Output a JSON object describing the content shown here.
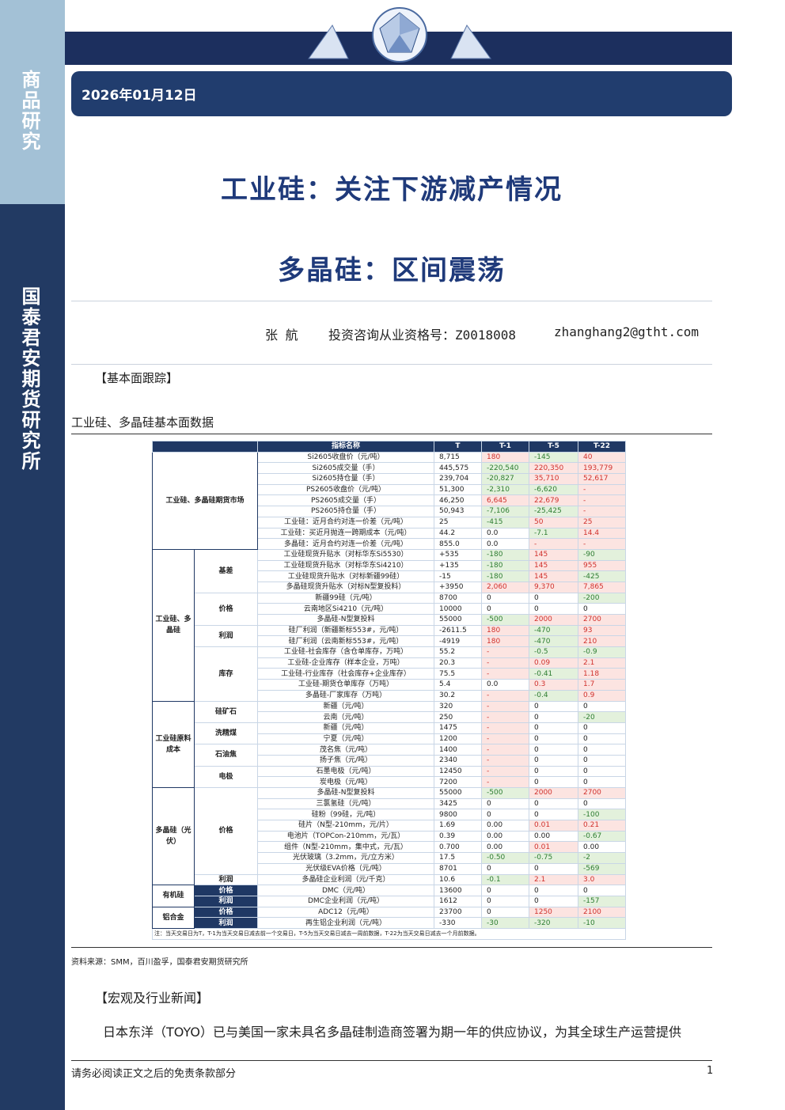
{
  "sidebar": {
    "top": "商品研究",
    "bottom": "国泰君安期货研究所"
  },
  "header": {
    "date": "2026年01月12日"
  },
  "titles": [
    "工业硅：关注下游减产情况",
    "多晶硅：区间震荡"
  ],
  "author": {
    "name": "张 航",
    "license": "投资咨询从业资格号：Z0018008",
    "email": "zhanghang2@gtht.com"
  },
  "section1": "【基本面跟踪】",
  "table_title": "工业硅、多晶硅基本面数据",
  "table": {
    "header": [
      "指标名称",
      "T",
      "T-1",
      "T-5",
      "T-22"
    ],
    "groups": [
      {
        "label": "工业硅、多晶硅期货市场",
        "rows": [
          [
            "Si2605收盘价（元/吨）",
            "8,715",
            "180",
            "-145",
            "40"
          ],
          [
            "Si2605成交量（手）",
            "445,575",
            "-220,540",
            "220,350",
            "193,779"
          ],
          [
            "Si2605持仓量（手）",
            "239,704",
            "-20,827",
            "35,710",
            "52,617"
          ],
          [
            "PS2605收盘价（元/吨）",
            "51,300",
            "-2,310",
            "-6,620",
            "-"
          ],
          [
            "PS2605成交量（手）",
            "46,250",
            "6,645",
            "22,679",
            "-"
          ],
          [
            "PS2605持仓量（手）",
            "50,943",
            "-7,106",
            "-25,425",
            "-"
          ],
          [
            "工业硅：近月合约对连一价差（元/吨）",
            "25",
            "-415",
            "50",
            "25"
          ],
          [
            "工业硅：买近月抛连一跨期成本（元/吨）",
            "44.2",
            "0.0",
            "-7.1",
            "14.4"
          ],
          [
            "多晶硅：近月合约对连一价差（元/吨）",
            "855.0",
            "0.0",
            "-",
            "-"
          ]
        ]
      },
      {
        "label": "工业硅、多晶硅",
        "subgroups": [
          {
            "label": "基差",
            "rows": [
              [
                "工业硅现货升贴水（对标华东Si5530）",
                "+535",
                "-180",
                "145",
                "-90"
              ],
              [
                "工业硅现货升贴水（对标华东Si4210）",
                "+135",
                "-180",
                "145",
                "955"
              ],
              [
                "工业硅现货升贴水（对标新疆99硅）",
                "-15",
                "-180",
                "145",
                "-425"
              ],
              [
                "多晶硅现货升贴水（对标N型复投料）",
                "+3950",
                "2,060",
                "9,370",
                "7,865"
              ]
            ]
          },
          {
            "label": "价格",
            "rows": [
              [
                "新疆99硅（元/吨）",
                "8700",
                "0",
                "0",
                "-200"
              ],
              [
                "云南地区Si4210（元/吨）",
                "10000",
                "0",
                "0",
                "0"
              ],
              [
                "多晶硅-N型复投料",
                "55000",
                "-500",
                "2000",
                "2700"
              ]
            ]
          },
          {
            "label": "利润",
            "rows": [
              [
                "硅厂利润（新疆新标553#，元/吨）",
                "-2611.5",
                "180",
                "-470",
                "93"
              ],
              [
                "硅厂利润（云南新标553#，元/吨）",
                "-4919",
                "180",
                "-470",
                "210"
              ]
            ]
          },
          {
            "label": "库存",
            "rows": [
              [
                "工业硅-社会库存（含仓单库存，万吨）",
                "55.2",
                "-",
                "-0.5",
                "-0.9"
              ],
              [
                "工业硅-企业库存（样本企业，万吨）",
                "20.3",
                "-",
                "0.09",
                "2.1"
              ],
              [
                "工业硅-行业库存（社会库存+企业库存）",
                "75.5",
                "-",
                "-0.41",
                "1.18"
              ],
              [
                "工业硅-期货仓单库存（万吨）",
                "5.4",
                "0.0",
                "0.3",
                "1.7"
              ],
              [
                "多晶硅-厂家库存（万吨）",
                "30.2",
                "-",
                "-0.4",
                "0.9"
              ]
            ]
          }
        ]
      },
      {
        "label": "工业硅原料成本",
        "subgroups": [
          {
            "label": "硅矿石",
            "rows": [
              [
                "新疆（元/吨）",
                "320",
                "-",
                "0",
                "0"
              ],
              [
                "云南（元/吨）",
                "250",
                "-",
                "0",
                "-20"
              ]
            ]
          },
          {
            "label": "洗精煤",
            "rows": [
              [
                "新疆（元/吨）",
                "1475",
                "-",
                "0",
                "0"
              ],
              [
                "宁夏（元/吨）",
                "1200",
                "-",
                "0",
                "0"
              ]
            ]
          },
          {
            "label": "石油焦",
            "rows": [
              [
                "茂名焦（元/吨）",
                "1400",
                "-",
                "0",
                "0"
              ],
              [
                "扬子焦（元/吨）",
                "2340",
                "-",
                "0",
                "0"
              ]
            ]
          },
          {
            "label": "电极",
            "rows": [
              [
                "石墨电极（元/吨）",
                "12450",
                "-",
                "0",
                "0"
              ],
              [
                "炭电极（元/吨）",
                "7200",
                "-",
                "0",
                "0"
              ]
            ]
          }
        ]
      },
      {
        "label": "多晶硅（光伏）",
        "subgroups": [
          {
            "label": "价格",
            "rows": [
              [
                "多晶硅-N型复投料",
                "55000",
                "-500",
                "2000",
                "2700"
              ],
              [
                "三氯氢硅（元/吨）",
                "3425",
                "0",
                "0",
                "0"
              ],
              [
                "硅粉（99硅，元/吨）",
                "9800",
                "0",
                "0",
                "-100"
              ],
              [
                "硅片（N型-210mm，元/片）",
                "1.69",
                "0.00",
                "0.01",
                "0.21"
              ],
              [
                "电池片（TOPCon-210mm，元/瓦）",
                "0.39",
                "0.00",
                "0.00",
                "-0.67"
              ],
              [
                "组件（N型-210mm，集中式，元/瓦）",
                "0.700",
                "0.00",
                "0.01",
                "0.00"
              ],
              [
                "光伏玻璃（3.2mm，元/立方米）",
                "17.5",
                "-0.50",
                "-0.75",
                "-2"
              ],
              [
                "光伏级EVA价格（元/吨）",
                "8701",
                "0",
                "0",
                "-569"
              ]
            ]
          },
          {
            "label": "利润",
            "rows": [
              [
                "多晶硅企业利润（元/千克）",
                "10.6",
                "-0.1",
                "2.1",
                "3.0"
              ]
            ]
          }
        ]
      },
      {
        "label": "有机硅",
        "subgroups": [
          {
            "label": "价格",
            "rows": [
              [
                "DMC（元/吨）",
                "13600",
                "0",
                "0",
                "0"
              ]
            ]
          },
          {
            "label": "利润",
            "rows": [
              [
                "DMC企业利润（元/吨）",
                "1612",
                "0",
                "0",
                "-157"
              ]
            ]
          }
        ]
      },
      {
        "label": "铝合金",
        "subgroups": [
          {
            "label": "价格",
            "rows": [
              [
                "ADC12（元/吨）",
                "23700",
                "0",
                "1250",
                "2100"
              ]
            ]
          },
          {
            "label": "利润",
            "rows": [
              [
                "再生铝企业利润（元/吨）",
                "-330",
                "-30",
                "-320",
                "-10"
              ]
            ]
          }
        ]
      }
    ],
    "note": "注：当天交易日为T，T-1为当天交易日减去前一个交易日，T-5为当天交易日减去一周前数据，T-22为当天交易日减去一个月前数据。"
  },
  "source": "资料来源：SMM，百川盈孚，国泰君安期货研究所",
  "section2": "【宏观及行业新闻】",
  "paragraph": "日本东洋（TOYO）已与美国一家未具名多晶硅制造商签署为期一年的供应协议，为其全球生产运营提供",
  "footer": {
    "disclaimer": "请务必阅读正文之后的免责条款部分",
    "page": "1"
  }
}
